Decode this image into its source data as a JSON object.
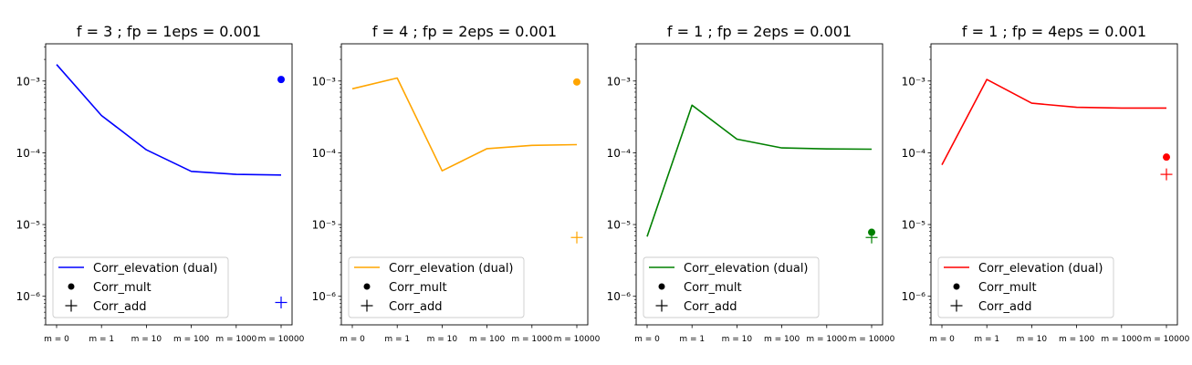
{
  "legend_labels": {
    "line": "Corr_elevation (dual)",
    "mult": "Corr_mult",
    "add": "Corr_add"
  },
  "chart_data": [
    {
      "type": "line",
      "title": "f = 3 ; fp = 1eps = 0.001",
      "categories": [
        "m = 0",
        "m = 1",
        "m = 10",
        "m = 100",
        "m = 1000",
        "m = 10000"
      ],
      "y_scale": "log",
      "ylim": [
        4e-07,
        0.0033
      ],
      "yticks": [
        {
          "value": 0.001,
          "label": "10⁻³"
        },
        {
          "value": 0.0001,
          "label": "10⁻⁴"
        },
        {
          "value": 1e-05,
          "label": "10⁻⁵"
        },
        {
          "value": 1e-06,
          "label": "10⁻⁶"
        }
      ],
      "color": "#0000ff",
      "series": [
        {
          "name": "Corr_elevation (dual)",
          "values": [
            0.0017,
            0.00033,
            0.00011,
            5.5e-05,
            5e-05,
            4.9e-05
          ]
        }
      ],
      "mult_point": {
        "category": "m = 10000",
        "value": 0.00105
      },
      "add_point": {
        "category": "m = 10000",
        "value": 8.2e-07
      },
      "legend_position": "lower left"
    },
    {
      "type": "line",
      "title": "f = 4 ; fp = 2eps = 0.001",
      "categories": [
        "m = 0",
        "m = 1",
        "m = 10",
        "m = 100",
        "m = 1000",
        "m = 10000"
      ],
      "y_scale": "log",
      "ylim": [
        4e-07,
        0.0033
      ],
      "yticks": [
        {
          "value": 0.001,
          "label": "10⁻³"
        },
        {
          "value": 0.0001,
          "label": "10⁻⁴"
        },
        {
          "value": 1e-05,
          "label": "10⁻⁵"
        },
        {
          "value": 1e-06,
          "label": "10⁻⁶"
        }
      ],
      "color": "#ffa500",
      "series": [
        {
          "name": "Corr_elevation (dual)",
          "values": [
            0.00078,
            0.0011,
            5.6e-05,
            0.000114,
            0.000127,
            0.00013
          ]
        }
      ],
      "mult_point": {
        "category": "m = 10000",
        "value": 0.00097
      },
      "add_point": {
        "category": "m = 10000",
        "value": 6.6e-06
      },
      "legend_position": "lower left"
    },
    {
      "type": "line",
      "title": "f = 1 ; fp = 2eps = 0.001",
      "categories": [
        "m = 0",
        "m = 1",
        "m = 10",
        "m = 100",
        "m = 1000",
        "m = 10000"
      ],
      "y_scale": "log",
      "ylim": [
        4e-07,
        0.0033
      ],
      "yticks": [
        {
          "value": 0.001,
          "label": "10⁻³"
        },
        {
          "value": 0.0001,
          "label": "10⁻⁴"
        },
        {
          "value": 1e-05,
          "label": "10⁻⁵"
        },
        {
          "value": 1e-06,
          "label": "10⁻⁶"
        }
      ],
      "color": "#008000",
      "series": [
        {
          "name": "Corr_elevation (dual)",
          "values": [
            6.8e-06,
            0.00046,
            0.000155,
            0.000117,
            0.000113,
            0.000112
          ]
        }
      ],
      "mult_point": {
        "category": "m = 10000",
        "value": 7.8e-06
      },
      "add_point": {
        "category": "m = 10000",
        "value": 6.6e-06
      },
      "legend_position": "lower left"
    },
    {
      "type": "line",
      "title": "f = 1 ; fp = 4eps = 0.001",
      "categories": [
        "m = 0",
        "m = 1",
        "m = 10",
        "m = 100",
        "m = 1000",
        "m = 10000"
      ],
      "y_scale": "log",
      "ylim": [
        4e-07,
        0.0033
      ],
      "yticks": [
        {
          "value": 0.001,
          "label": "10⁻³"
        },
        {
          "value": 0.0001,
          "label": "10⁻⁴"
        },
        {
          "value": 1e-05,
          "label": "10⁻⁵"
        },
        {
          "value": 1e-06,
          "label": "10⁻⁶"
        }
      ],
      "color": "#ff0000",
      "series": [
        {
          "name": "Corr_elevation (dual)",
          "values": [
            6.8e-05,
            0.00105,
            0.00049,
            0.00043,
            0.00042,
            0.00042
          ]
        }
      ],
      "mult_point": {
        "category": "m = 10000",
        "value": 8.7e-05
      },
      "add_point": {
        "category": "m = 10000",
        "value": 5e-05
      },
      "legend_position": "lower left"
    }
  ]
}
